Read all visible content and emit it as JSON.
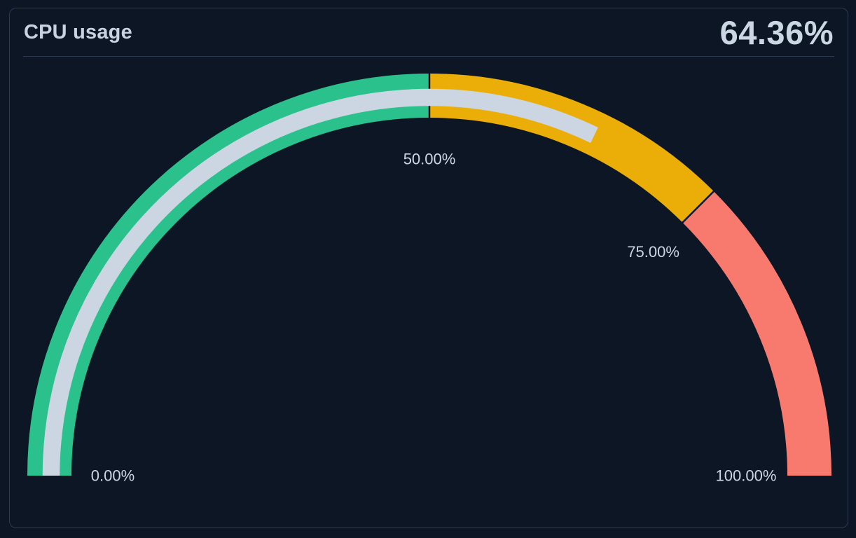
{
  "panel": {
    "title": "CPU usage",
    "value": "64.36%"
  },
  "colors": {
    "background": "#0d1625",
    "panel_border": "#2c3a52",
    "title_text": "#c8d2e0",
    "value_text": "#ccd7e4",
    "tick_label_text": "#cdd7e3"
  },
  "chart_data": {
    "type": "gauge",
    "title": "CPU usage",
    "value": 64.36,
    "value_label": "64.36%",
    "unit": "%",
    "min": 0,
    "max": 100,
    "start_angle_deg": 180,
    "end_angle_deg": 0,
    "segments": [
      {
        "from": 0,
        "to": 50,
        "color": "#2bc18d"
      },
      {
        "from": 50,
        "to": 75,
        "color": "#ebae08"
      },
      {
        "from": 75,
        "to": 100,
        "color": "#f87a6f"
      }
    ],
    "value_arc_color": "#ccd5e2",
    "tick_labels": [
      {
        "value": 0,
        "label": "0.00%"
      },
      {
        "value": 50,
        "label": "50.00%"
      },
      {
        "value": 75,
        "label": "75.00%"
      },
      {
        "value": 100,
        "label": "100.00%"
      }
    ],
    "legend": false,
    "grid": false
  }
}
